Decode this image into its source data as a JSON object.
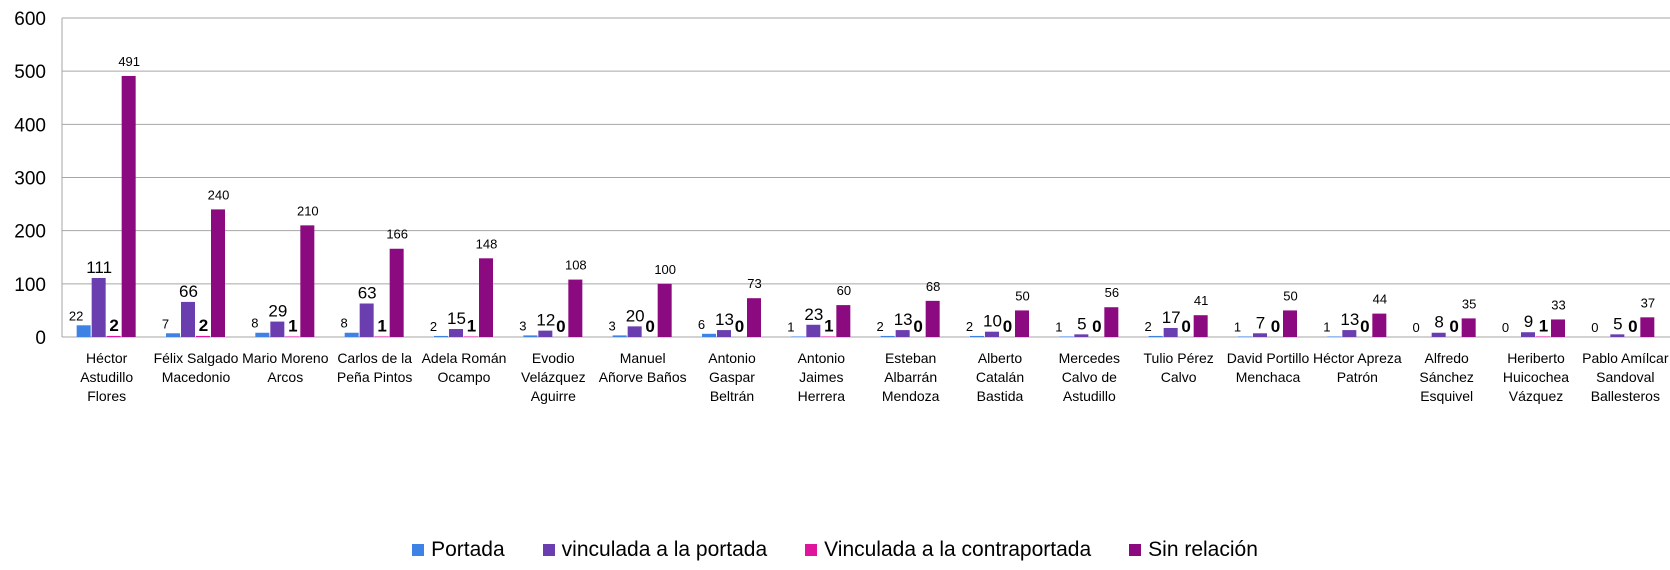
{
  "chart_data": {
    "type": "bar",
    "categories": [
      "Héctor Astudillo Flores",
      "Félix Salgado Macedonio",
      "Mario Moreno Arcos",
      "Carlos de la Peña Pintos",
      "Adela Román Ocampo",
      "Evodio Velázquez Aguirre",
      "Manuel Añorve Baños",
      "Antonio Gaspar Beltrán",
      "Antonio Jaimes Herrera",
      "Esteban Albarrán Mendoza",
      "Alberto Catalán Bastida",
      "Mercedes Calvo de Astudillo",
      "Tulio Pérez Calvo",
      "David Portillo Menchaca",
      "Héctor Apreza Patrón",
      "Alfredo Sánchez Esquivel",
      "Heriberto Huicochea Vázquez",
      "Pablo Amílcar Sandoval Ballesteros"
    ],
    "series": [
      {
        "name": "Portada",
        "color": "#3f82e6",
        "values": [
          22,
          7,
          8,
          8,
          2,
          3,
          3,
          6,
          1,
          2,
          2,
          1,
          2,
          1,
          1,
          0,
          0,
          0
        ]
      },
      {
        "name": "vinculada a la portada",
        "color": "#6b3eb0",
        "values": [
          111,
          66,
          29,
          63,
          15,
          12,
          20,
          13,
          23,
          13,
          10,
          5,
          17,
          7,
          13,
          8,
          9,
          5
        ]
      },
      {
        "name": "Vinculada a la contraportada",
        "color": "#e0159e",
        "values": [
          2,
          2,
          1,
          1,
          1,
          0,
          0,
          0,
          1,
          0,
          0,
          0,
          0,
          0,
          0,
          0,
          1,
          0
        ]
      },
      {
        "name": "Sin relación",
        "color": "#8c0a80",
        "values": [
          491,
          240,
          210,
          166,
          148,
          108,
          100,
          73,
          60,
          68,
          50,
          56,
          41,
          50,
          44,
          35,
          33,
          37
        ]
      }
    ],
    "ylim": [
      0,
      600
    ],
    "yticks": [
      0,
      100,
      200,
      300,
      400,
      500,
      600
    ],
    "grid": true,
    "legend": "bottom"
  }
}
